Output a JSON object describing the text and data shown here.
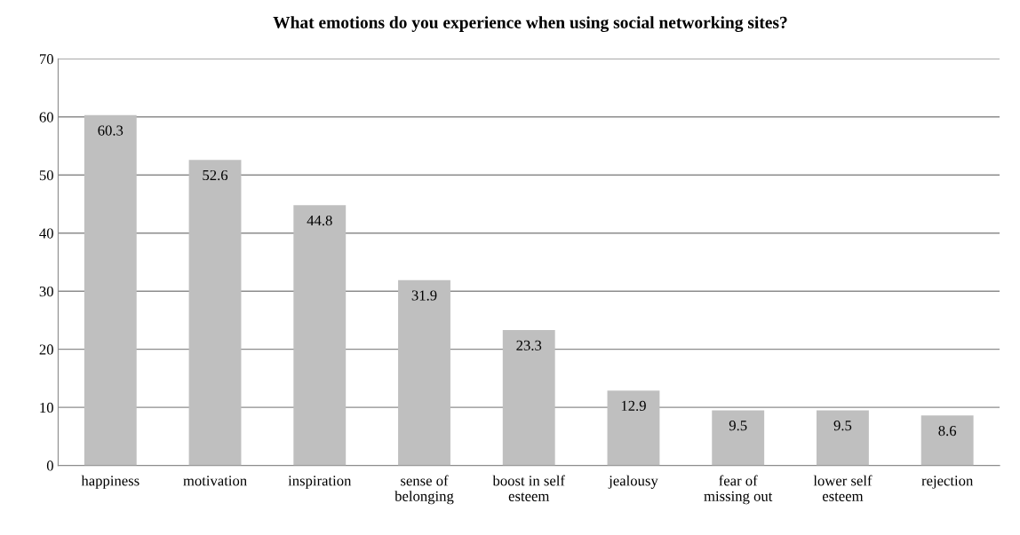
{
  "chart_data": {
    "type": "bar",
    "title": "What emotions do you experience when using social networking sites?",
    "categories": [
      "happiness",
      "motivation",
      "inspiration",
      "sense of\nbelonging",
      "boost in self\nesteem",
      "jealousy",
      "fear of\nmissing out",
      "lower self\nesteem",
      "rejection"
    ],
    "values": [
      60.3,
      52.6,
      44.8,
      31.9,
      23.3,
      12.9,
      9.5,
      9.5,
      8.6
    ],
    "color": "#bfbfbf",
    "ylim": [
      0,
      70
    ],
    "yticks": [
      0,
      10,
      20,
      30,
      40,
      50,
      60,
      70
    ],
    "grid": "y",
    "data_labels": true,
    "legend": false
  }
}
